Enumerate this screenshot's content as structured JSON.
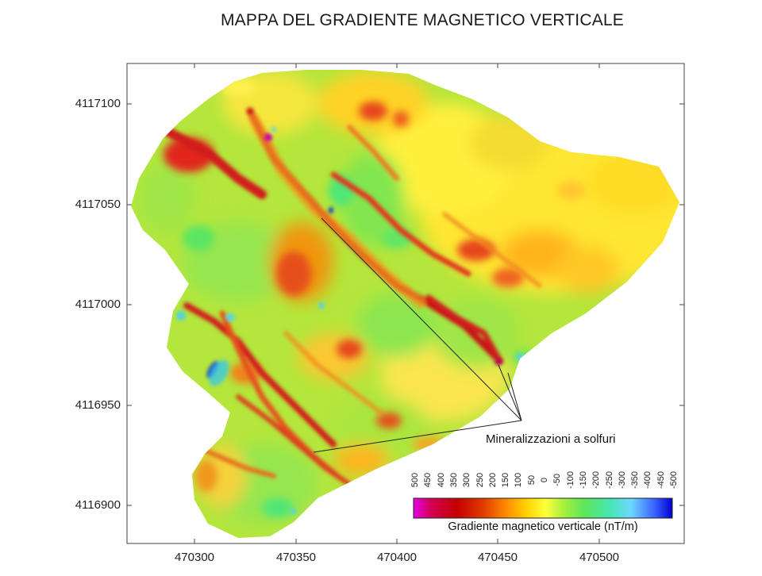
{
  "title": "MAPPA DEL GRADIENTE MAGNETICO VERTICALE",
  "axes": {
    "x_ticks": [
      "470300",
      "470350",
      "470400",
      "470450",
      "470500"
    ],
    "y_ticks": [
      "4117100",
      "4117050",
      "4117000",
      "4116950",
      "4116900"
    ]
  },
  "annotation": {
    "text": "Mineralizzazioni a solfuri"
  },
  "legend": {
    "title": "Gradiente magnetico verticale (nT/m)",
    "values": [
      "500",
      "450",
      "400",
      "350",
      "300",
      "250",
      "200",
      "150",
      "100",
      "50",
      "0",
      "-50",
      "-100",
      "-150",
      "-200",
      "-250",
      "-300",
      "-350",
      "-400",
      "-450",
      "-500"
    ],
    "colors": [
      "#e600e6",
      "#d4004f",
      "#c40000",
      "#e03c00",
      "#ff8c00",
      "#ffd400",
      "#ffff3c",
      "#a8f03c",
      "#5ce65a",
      "#46e6b4",
      "#6ed8ff",
      "#3c64ff",
      "#0000d2"
    ]
  },
  "map_colors": {
    "high": "#c8141e",
    "mid": "#ffdc32",
    "low": "#78e650",
    "negative": "#3cc8e6",
    "extreme_positive": "#c800b4",
    "extreme_negative": "#1432c8"
  }
}
